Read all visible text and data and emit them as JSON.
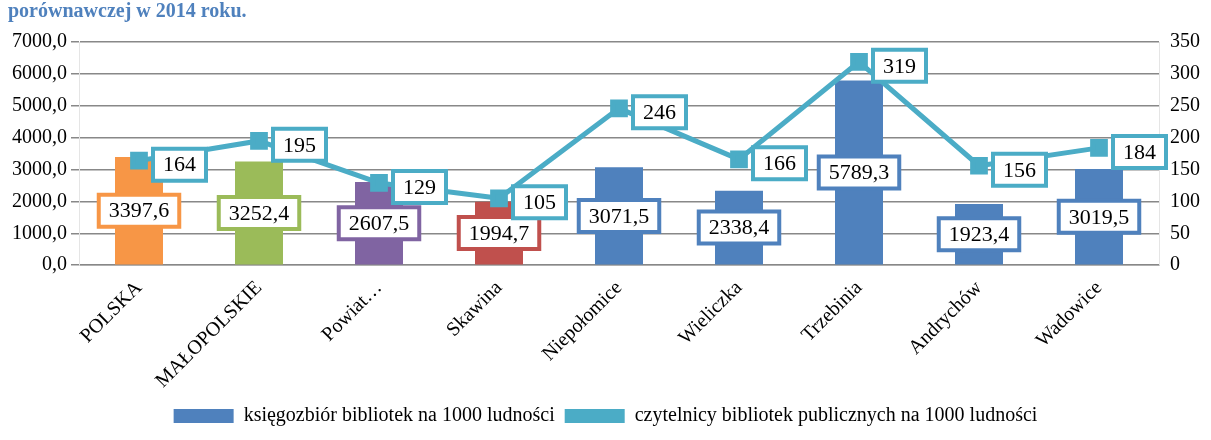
{
  "chart_data": {
    "type": "bar",
    "title": "porównawczej w 2014 roku.",
    "categories": [
      "POLSKA",
      "MAŁOPOLSKIE",
      "Powiat…",
      "Skawina",
      "Niepołomice",
      "Wieliczka",
      "Trzebinia",
      "Andrychów",
      "Wadowice"
    ],
    "series": [
      {
        "name": "księgozbiór bibliotek na 1000 ludności",
        "color": "#4f81bd",
        "colors": [
          "#f79646",
          "#9bbb59",
          "#8064a2",
          "#c0504d",
          "#4f81bd",
          "#4f81bd",
          "#4f81bd",
          "#4f81bd",
          "#4f81bd"
        ],
        "values": [
          3397.6,
          3252.4,
          2607.5,
          1994.7,
          3071.5,
          2338.4,
          5789.3,
          1923.4,
          3019.5
        ],
        "value_labels": [
          "3397,6",
          "3252,4",
          "2607,5",
          "1994,7",
          "3071,5",
          "2338,4",
          "5789,3",
          "1923,4",
          "3019,5"
        ]
      },
      {
        "name": "czytelnicy bibliotek publicznych na 1000 ludności",
        "type": "line",
        "axis": "y2",
        "color": "#4bacc6",
        "values": [
          164,
          195,
          129,
          105,
          246,
          166,
          319,
          156,
          184
        ],
        "value_labels": [
          "164",
          "195",
          "129",
          "105",
          "246",
          "166",
          "319",
          "156",
          "184"
        ]
      }
    ],
    "ylim": [
      0,
      7000
    ],
    "yticks": [
      {
        "value": 0,
        "label": "0,0"
      },
      {
        "value": 1000,
        "label": "1000,0"
      },
      {
        "value": 2000,
        "label": "2000,0"
      },
      {
        "value": 3000,
        "label": "3000,0"
      },
      {
        "value": 4000,
        "label": "4000,0"
      },
      {
        "value": 5000,
        "label": "5000,0"
      },
      {
        "value": 6000,
        "label": "6000,0"
      },
      {
        "value": 7000,
        "label": "7000,0"
      }
    ],
    "y2lim": [
      0,
      350
    ],
    "y2ticks": [
      0,
      50,
      100,
      150,
      200,
      250,
      300,
      350
    ],
    "grid": "y",
    "legend": "bottom",
    "marker": "square",
    "line_style": "solid"
  }
}
